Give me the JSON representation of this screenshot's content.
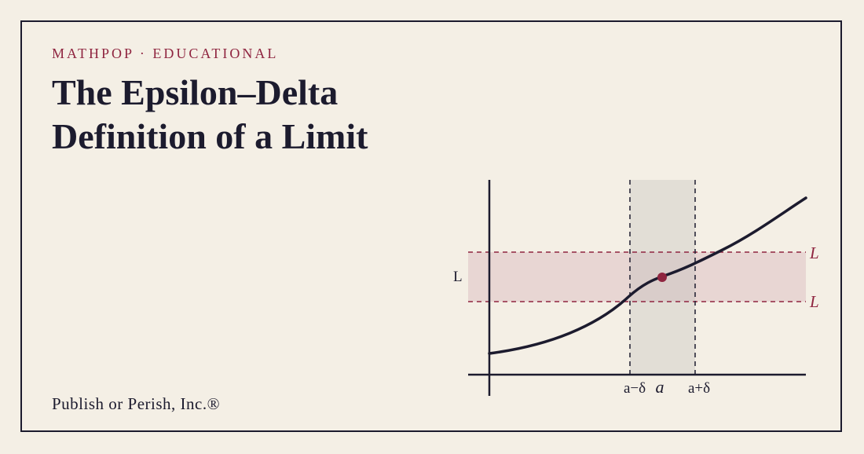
{
  "header": {
    "eyebrow": "MATHPOP · EDUCATIONAL",
    "title_line1": "The Epsilon–Delta",
    "title_line2": "Definition of a Limit"
  },
  "footer": {
    "publisher": "Publish or Perish, Inc.®"
  },
  "diagram": {
    "y_axis_label": "L",
    "upper_band_label": "L",
    "lower_band_label": "L",
    "x_left_label": "a−δ",
    "x_center_label": "a",
    "x_right_label": "a+δ"
  },
  "colors": {
    "background": "#f4efe5",
    "ink": "#1c1b2e",
    "accent": "#8f2540",
    "epsilon_band": "#e8d6d3",
    "delta_band": "#e2ded6",
    "overlap": "#d9cdca"
  }
}
